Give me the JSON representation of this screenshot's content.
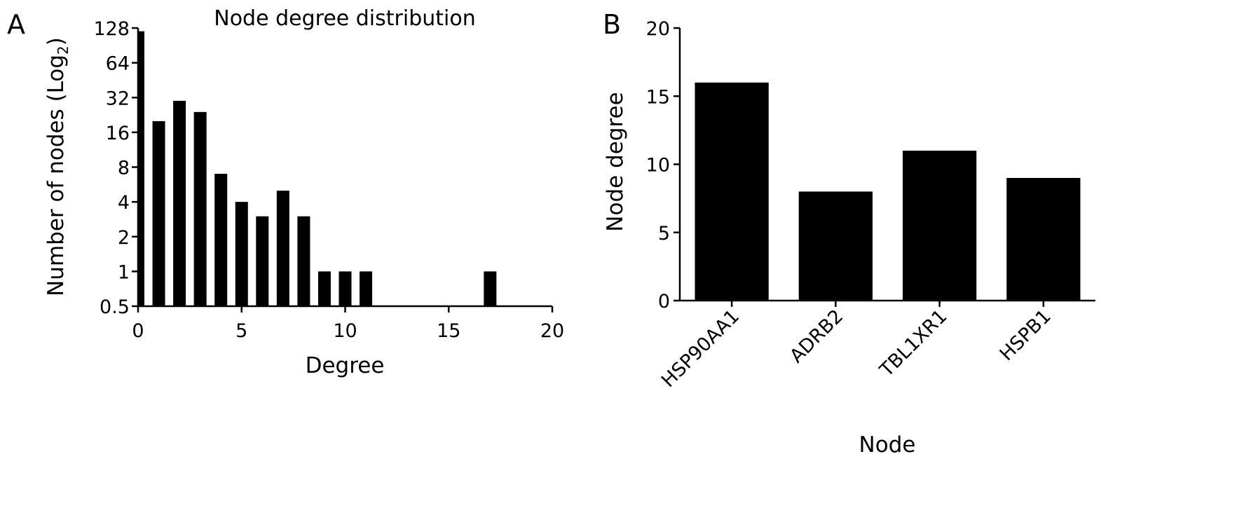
{
  "chart_data": [
    {
      "panel": "A",
      "type": "bar",
      "title": "Node degree distribution",
      "xlabel": "Degree",
      "ylabel": "Number of nodes (Log",
      "ylabel_subscript": "2",
      "ylabel_close": ")",
      "yscale": "log2",
      "xlim": [
        0,
        20
      ],
      "ylim": [
        0.5,
        128
      ],
      "xticks": [
        "0",
        "5",
        "10",
        "15",
        "20"
      ],
      "yticks": [
        "0.5",
        "1",
        "2",
        "4",
        "8",
        "16",
        "32",
        "64",
        "128"
      ],
      "x": [
        0,
        1,
        2,
        3,
        4,
        5,
        6,
        7,
        8,
        9,
        10,
        11,
        17
      ],
      "values": [
        120,
        20,
        30,
        24,
        7,
        4,
        3,
        5,
        3,
        1,
        1,
        1,
        1
      ]
    },
    {
      "panel": "B",
      "type": "bar",
      "title": "",
      "xlabel": "Node",
      "ylabel": "Node degree",
      "ylim": [
        0,
        20
      ],
      "yticks": [
        "0",
        "5",
        "10",
        "15",
        "20"
      ],
      "categories": [
        "HSP90AA1",
        "ADRB2",
        "TBL1XR1",
        "HSPB1"
      ],
      "values": [
        16,
        8,
        11,
        9
      ]
    }
  ]
}
